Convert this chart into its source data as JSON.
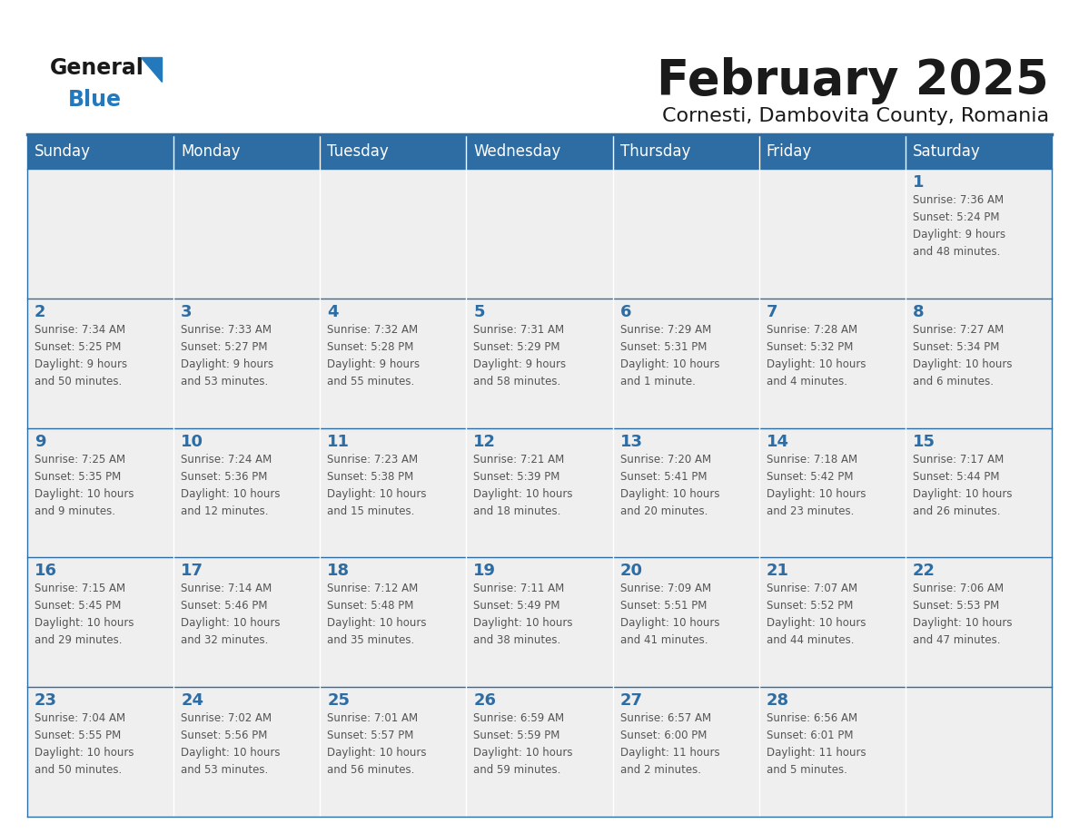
{
  "title": "February 2025",
  "subtitle": "Cornesti, Dambovita County, Romania",
  "days_of_week": [
    "Sunday",
    "Monday",
    "Tuesday",
    "Wednesday",
    "Thursday",
    "Friday",
    "Saturday"
  ],
  "header_bg": "#2E6DA4",
  "header_text": "#FFFFFF",
  "cell_bg": "#EFEFEF",
  "cell_border_color": "#2E6DA4",
  "day_num_color": "#2E6DA4",
  "info_text_color": "#555555",
  "title_color": "#1A1A1A",
  "calendar_data": [
    [
      null,
      null,
      null,
      null,
      null,
      null,
      {
        "day": 1,
        "sunrise": "7:36 AM",
        "sunset": "5:24 PM",
        "daylight": "9 hours and 48 minutes."
      }
    ],
    [
      {
        "day": 2,
        "sunrise": "7:34 AM",
        "sunset": "5:25 PM",
        "daylight": "9 hours and 50 minutes."
      },
      {
        "day": 3,
        "sunrise": "7:33 AM",
        "sunset": "5:27 PM",
        "daylight": "9 hours and 53 minutes."
      },
      {
        "day": 4,
        "sunrise": "7:32 AM",
        "sunset": "5:28 PM",
        "daylight": "9 hours and 55 minutes."
      },
      {
        "day": 5,
        "sunrise": "7:31 AM",
        "sunset": "5:29 PM",
        "daylight": "9 hours and 58 minutes."
      },
      {
        "day": 6,
        "sunrise": "7:29 AM",
        "sunset": "5:31 PM",
        "daylight": "10 hours and 1 minute."
      },
      {
        "day": 7,
        "sunrise": "7:28 AM",
        "sunset": "5:32 PM",
        "daylight": "10 hours and 4 minutes."
      },
      {
        "day": 8,
        "sunrise": "7:27 AM",
        "sunset": "5:34 PM",
        "daylight": "10 hours and 6 minutes."
      }
    ],
    [
      {
        "day": 9,
        "sunrise": "7:25 AM",
        "sunset": "5:35 PM",
        "daylight": "10 hours and 9 minutes."
      },
      {
        "day": 10,
        "sunrise": "7:24 AM",
        "sunset": "5:36 PM",
        "daylight": "10 hours and 12 minutes."
      },
      {
        "day": 11,
        "sunrise": "7:23 AM",
        "sunset": "5:38 PM",
        "daylight": "10 hours and 15 minutes."
      },
      {
        "day": 12,
        "sunrise": "7:21 AM",
        "sunset": "5:39 PM",
        "daylight": "10 hours and 18 minutes."
      },
      {
        "day": 13,
        "sunrise": "7:20 AM",
        "sunset": "5:41 PM",
        "daylight": "10 hours and 20 minutes."
      },
      {
        "day": 14,
        "sunrise": "7:18 AM",
        "sunset": "5:42 PM",
        "daylight": "10 hours and 23 minutes."
      },
      {
        "day": 15,
        "sunrise": "7:17 AM",
        "sunset": "5:44 PM",
        "daylight": "10 hours and 26 minutes."
      }
    ],
    [
      {
        "day": 16,
        "sunrise": "7:15 AM",
        "sunset": "5:45 PM",
        "daylight": "10 hours and 29 minutes."
      },
      {
        "day": 17,
        "sunrise": "7:14 AM",
        "sunset": "5:46 PM",
        "daylight": "10 hours and 32 minutes."
      },
      {
        "day": 18,
        "sunrise": "7:12 AM",
        "sunset": "5:48 PM",
        "daylight": "10 hours and 35 minutes."
      },
      {
        "day": 19,
        "sunrise": "7:11 AM",
        "sunset": "5:49 PM",
        "daylight": "10 hours and 38 minutes."
      },
      {
        "day": 20,
        "sunrise": "7:09 AM",
        "sunset": "5:51 PM",
        "daylight": "10 hours and 41 minutes."
      },
      {
        "day": 21,
        "sunrise": "7:07 AM",
        "sunset": "5:52 PM",
        "daylight": "10 hours and 44 minutes."
      },
      {
        "day": 22,
        "sunrise": "7:06 AM",
        "sunset": "5:53 PM",
        "daylight": "10 hours and 47 minutes."
      }
    ],
    [
      {
        "day": 23,
        "sunrise": "7:04 AM",
        "sunset": "5:55 PM",
        "daylight": "10 hours and 50 minutes."
      },
      {
        "day": 24,
        "sunrise": "7:02 AM",
        "sunset": "5:56 PM",
        "daylight": "10 hours and 53 minutes."
      },
      {
        "day": 25,
        "sunrise": "7:01 AM",
        "sunset": "5:57 PM",
        "daylight": "10 hours and 56 minutes."
      },
      {
        "day": 26,
        "sunrise": "6:59 AM",
        "sunset": "5:59 PM",
        "daylight": "10 hours and 59 minutes."
      },
      {
        "day": 27,
        "sunrise": "6:57 AM",
        "sunset": "6:00 PM",
        "daylight": "11 hours and 2 minutes."
      },
      {
        "day": 28,
        "sunrise": "6:56 AM",
        "sunset": "6:01 PM",
        "daylight": "11 hours and 5 minutes."
      },
      null
    ]
  ],
  "logo_color_general": "#1A1A1A",
  "logo_color_blue": "#2479BD",
  "logo_triangle_color": "#2479BD"
}
